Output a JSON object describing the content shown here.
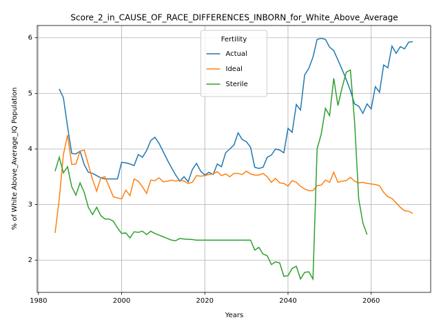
{
  "chart_data": {
    "type": "line",
    "title": "Score_2_in_CAUSE_OF_RACE_DIFFERENCES_INBORN_for_White_Above_Average",
    "xlabel": "Years",
    "ylabel": "% of White Above_Average_IQ Population",
    "legend_title": "Fertility",
    "legend_loc": "upper center",
    "grid": true,
    "xlim": [
      1979.7,
      2074.3
    ],
    "ylim": [
      1.42,
      6.22
    ],
    "xticks": [
      1980,
      2000,
      2020,
      2040,
      2060
    ],
    "yticks": [
      2,
      3,
      4,
      5,
      6
    ],
    "x": [
      1984,
      1985,
      1986,
      1987,
      1988,
      1989,
      1990,
      1991,
      1992,
      1993,
      1994,
      1995,
      1996,
      1997,
      1998,
      1999,
      2000,
      2001,
      2002,
      2003,
      2004,
      2005,
      2006,
      2007,
      2008,
      2009,
      2010,
      2011,
      2012,
      2013,
      2014,
      2015,
      2016,
      2017,
      2018,
      2019,
      2020,
      2021,
      2022,
      2023,
      2024,
      2025,
      2026,
      2027,
      2028,
      2029,
      2030,
      2031,
      2032,
      2033,
      2034,
      2035,
      2036,
      2037,
      2038,
      2039,
      2040,
      2041,
      2042,
      2043,
      2044,
      2045,
      2046,
      2047,
      2048,
      2049,
      2050,
      2051,
      2052,
      2053,
      2054,
      2055,
      2056,
      2057,
      2058,
      2059,
      2060,
      2061,
      2062,
      2063,
      2064,
      2065,
      2066,
      2067,
      2068,
      2069,
      2070
    ],
    "series": [
      {
        "name": "Actual",
        "color": "#1f77b4",
        "values": [
          null,
          5.08,
          4.92,
          4.4,
          3.92,
          3.91,
          3.96,
          3.72,
          3.58,
          3.56,
          3.52,
          3.48,
          3.46,
          3.46,
          3.46,
          3.46,
          3.76,
          3.75,
          3.73,
          3.7,
          3.9,
          3.85,
          3.97,
          4.15,
          4.21,
          4.1,
          3.95,
          3.8,
          3.66,
          3.53,
          3.42,
          3.5,
          3.41,
          3.63,
          3.74,
          3.6,
          3.53,
          3.58,
          3.54,
          3.73,
          3.68,
          3.93,
          4.0,
          4.07,
          4.29,
          4.17,
          4.13,
          4.03,
          3.67,
          3.65,
          3.67,
          3.85,
          3.89,
          4.0,
          3.98,
          3.93,
          4.37,
          4.3,
          4.8,
          4.7,
          5.33,
          5.45,
          5.65,
          5.97,
          5.99,
          5.97,
          5.83,
          5.77,
          5.6,
          5.43,
          5.25,
          5.05,
          4.81,
          4.77,
          4.64,
          4.81,
          4.72,
          5.12,
          5.02,
          5.51,
          5.46,
          5.85,
          5.72,
          5.84,
          5.8,
          5.92,
          5.93
        ]
      },
      {
        "name": "Ideal",
        "color": "#ff7f0e",
        "values": [
          2.49,
          3.1,
          3.9,
          4.25,
          3.72,
          3.73,
          3.96,
          3.98,
          3.72,
          3.45,
          3.24,
          3.48,
          3.5,
          3.32,
          3.14,
          3.12,
          3.1,
          3.26,
          3.16,
          3.46,
          3.42,
          3.32,
          3.2,
          3.44,
          3.43,
          3.48,
          3.41,
          3.42,
          3.44,
          3.42,
          3.44,
          3.42,
          3.38,
          3.4,
          3.52,
          3.51,
          3.52,
          3.54,
          3.55,
          3.59,
          3.52,
          3.55,
          3.5,
          3.56,
          3.56,
          3.54,
          3.6,
          3.55,
          3.53,
          3.53,
          3.56,
          3.5,
          3.4,
          3.47,
          3.39,
          3.38,
          3.33,
          3.43,
          3.4,
          3.33,
          3.28,
          3.25,
          3.25,
          3.34,
          3.35,
          3.44,
          3.4,
          3.58,
          3.4,
          3.42,
          3.43,
          3.49,
          3.42,
          3.39,
          3.4,
          3.38,
          3.37,
          3.36,
          3.34,
          3.22,
          3.14,
          3.11,
          3.03,
          2.95,
          2.89,
          2.88,
          2.84
        ]
      },
      {
        "name": "Sterile",
        "color": "#2ca02c",
        "values": [
          3.6,
          3.85,
          3.57,
          3.68,
          3.32,
          3.17,
          3.39,
          3.22,
          2.95,
          2.82,
          2.95,
          2.8,
          2.74,
          2.74,
          2.7,
          2.58,
          2.48,
          2.49,
          2.4,
          2.51,
          2.5,
          2.52,
          2.46,
          2.52,
          2.48,
          2.45,
          2.42,
          2.39,
          2.36,
          2.35,
          2.39,
          2.38,
          2.375,
          2.37,
          2.36,
          2.36,
          2.36,
          2.36,
          2.36,
          2.36,
          2.36,
          2.36,
          2.36,
          2.36,
          2.36,
          2.36,
          2.36,
          2.36,
          2.18,
          2.23,
          2.11,
          2.08,
          1.92,
          1.97,
          1.95,
          1.71,
          1.72,
          1.85,
          1.89,
          1.66,
          1.78,
          1.79,
          1.66,
          4.0,
          4.27,
          4.73,
          4.6,
          5.27,
          4.78,
          5.1,
          5.38,
          5.42,
          4.5,
          3.1,
          2.67,
          2.46,
          null,
          null,
          null,
          null,
          null,
          null,
          null,
          null,
          null,
          null,
          null
        ]
      }
    ]
  }
}
